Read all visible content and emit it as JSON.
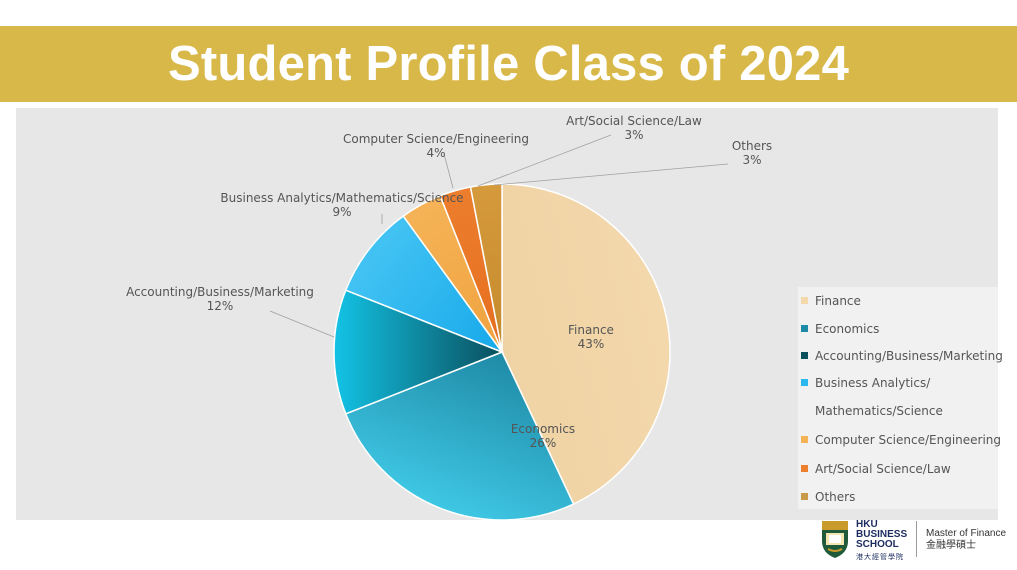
{
  "header": {
    "title": "Student Profile Class of 2024"
  },
  "chart_data": {
    "type": "pie",
    "title": "Student Profile Class of 2024",
    "legend_position": "right",
    "slices": [
      {
        "label": "Finance",
        "value": 43,
        "value_label": "43%",
        "color": "#f3d8ac",
        "color_inner": "#f0d3a4"
      },
      {
        "label": "Economics",
        "value": 26,
        "value_label": "26%",
        "color": "#3ec7e4",
        "color_inner": "#1f8aa6"
      },
      {
        "label": "Accounting/Business/Marketing",
        "value": 12,
        "value_label": "12%",
        "color": "#13c3e6",
        "color_inner": "#0a4f5c"
      },
      {
        "label": "Business Analytics/Mathematics/Science",
        "value": 9,
        "value_label": "9%",
        "color": "#43c3f3",
        "color_inner": "#17a9ea"
      },
      {
        "label": "Computer Science/Engineering",
        "value": 4,
        "value_label": "4%",
        "color": "#f5b357",
        "color_inner": "#f0a23e"
      },
      {
        "label": "Art/Social Science/Law",
        "value": 3,
        "value_label": "3%",
        "color": "#ec7e2e",
        "color_inner": "#e56e1e"
      },
      {
        "label": "Others",
        "value": 3,
        "value_label": "3%",
        "color": "#d59a3c",
        "color_inner": "#c58a2c"
      }
    ],
    "legend": [
      {
        "label": "Finance",
        "color": "#f3d8ac"
      },
      {
        "label": "Economics",
        "color": "#1f8aa6"
      },
      {
        "label": "Accounting/Business/Marketing",
        "color": "#0a4f5c"
      },
      {
        "label": "Business Analytics/\n\nMathematics/Science",
        "color": "#2ab8ef"
      },
      {
        "label": "Computer Science/Engineering",
        "color": "#f5b357"
      },
      {
        "label": "Art/Social Science/Law",
        "color": "#ec7e2e"
      },
      {
        "label": "Others",
        "color": "#c99a4a"
      }
    ]
  },
  "footer": {
    "school_line1": "HKU",
    "school_line2": "BUSINESS",
    "school_line3": "SCHOOL",
    "school_cn": "港大經管學院",
    "program_en": "Master of Finance",
    "program_cn": "金融學碩士"
  }
}
